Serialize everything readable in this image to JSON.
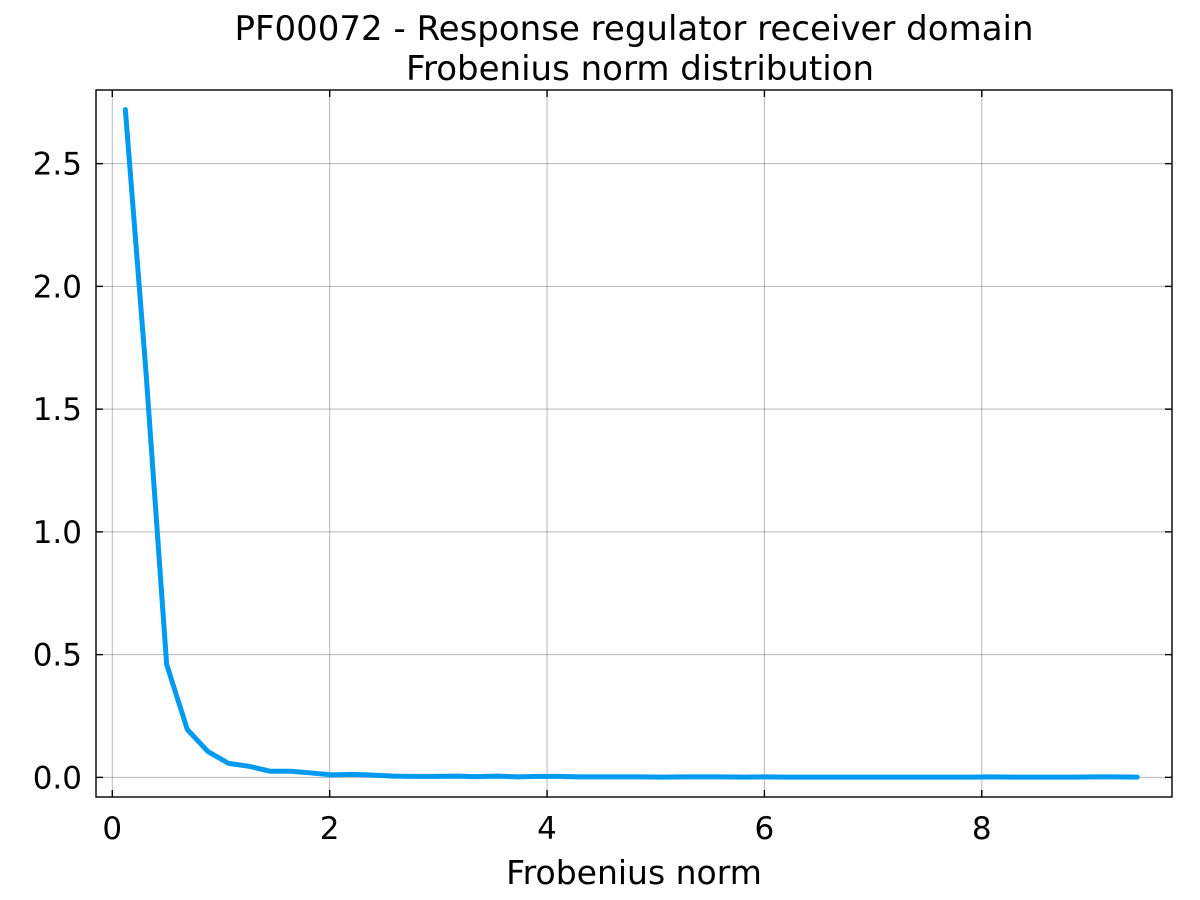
{
  "chart_data": {
    "type": "line",
    "title": "PF00072 - Response regulator receiver domain",
    "subtitle": "Frobenius norm distribution",
    "xlabel": "Frobenius norm",
    "ylabel": "",
    "xlim": [
      -0.15,
      9.75
    ],
    "ylim": [
      -0.08,
      2.8
    ],
    "x_ticks": [
      0,
      2,
      4,
      6,
      8
    ],
    "y_ticks": [
      0.0,
      0.5,
      1.0,
      1.5,
      2.0,
      2.5
    ],
    "x_tick_labels": [
      "0",
      "2",
      "4",
      "6",
      "8"
    ],
    "y_tick_labels": [
      "0.0",
      "0.5",
      "1.0",
      "1.5",
      "2.0",
      "2.5"
    ],
    "grid": true,
    "legend": "none",
    "series": [
      {
        "color": "#009AF0",
        "x": [
          0.12,
          0.31,
          0.5,
          0.69,
          0.88,
          1.07,
          1.26,
          1.45,
          1.64,
          1.83,
          2.02,
          2.21,
          2.4,
          2.59,
          2.78,
          2.97,
          3.16,
          3.35,
          3.54,
          3.73,
          3.92,
          4.11,
          4.3,
          4.49,
          4.68,
          4.87,
          5.06,
          5.25,
          5.44,
          5.63,
          5.82,
          6.01,
          6.2,
          6.39,
          6.58,
          6.77,
          6.96,
          7.15,
          7.34,
          7.53,
          7.72,
          7.91,
          8.1,
          8.29,
          8.48,
          8.67,
          8.86,
          9.05,
          9.24,
          9.43
        ],
        "y": [
          2.72,
          1.65,
          0.46,
          0.195,
          0.105,
          0.057,
          0.045,
          0.025,
          0.025,
          0.018,
          0.01,
          0.012,
          0.009,
          0.005,
          0.004,
          0.004,
          0.005,
          0.003,
          0.005,
          0.002,
          0.004,
          0.004,
          0.002,
          0.002,
          0.002,
          0.002,
          0.001,
          0.002,
          0.002,
          0.002,
          0.001,
          0.002,
          0.001,
          0.001,
          0.001,
          0.001,
          0.001,
          0.001,
          0.001,
          0.001,
          0.001,
          0.001,
          0.002,
          0.001,
          0.001,
          0.001,
          0.001,
          0.002,
          0.002,
          0.001
        ]
      }
    ]
  }
}
